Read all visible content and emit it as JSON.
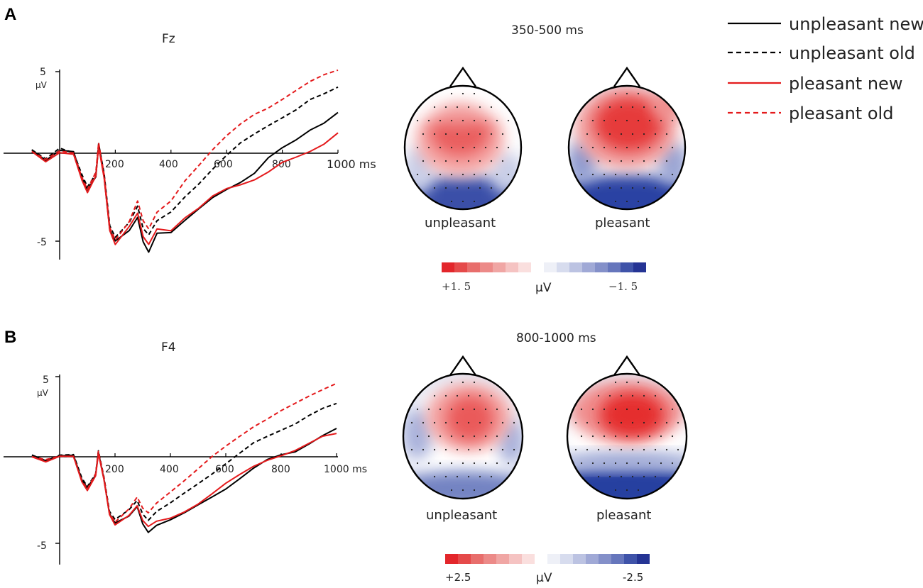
{
  "legend": [
    {
      "label": "unpleasant new",
      "color": "#000000",
      "dash": "solid"
    },
    {
      "label": "unpleasant old",
      "color": "#000000",
      "dash": "dashed"
    },
    {
      "label": "pleasant new",
      "color": "#e41a1c",
      "dash": "solid"
    },
    {
      "label": "pleasant old",
      "color": "#e41a1c",
      "dash": "dashed"
    }
  ],
  "colors": {
    "neg_dark": "#253494",
    "pos_dark": "#e3262b",
    "mid": "#ffffff"
  },
  "chart_data": [
    {
      "panel": "A",
      "type": "line",
      "title": "Fz",
      "xlabel": "ms",
      "ylabel": "μV",
      "xlim": [
        -100,
        1000
      ],
      "ylim": [
        -6,
        5
      ],
      "xticks": [
        "200",
        "400",
        "600",
        "800",
        "1000 ms"
      ],
      "yticks": [
        "5",
        "-5"
      ],
      "series": [
        {
          "name": "unpleasant new",
          "x": [
            -100,
            -50,
            0,
            50,
            80,
            100,
            130,
            140,
            160,
            180,
            200,
            250,
            280,
            300,
            320,
            350,
            400,
            450,
            500,
            550,
            600,
            650,
            700,
            750,
            800,
            850,
            900,
            950,
            1000
          ],
          "y": [
            0.2,
            -0.4,
            0.2,
            0.1,
            -1.5,
            -2.2,
            -1.4,
            0.5,
            -1.4,
            -4.5,
            -5.2,
            -4.6,
            -3.8,
            -5.2,
            -5.8,
            -4.7,
            -4.7,
            -4.0,
            -3.3,
            -2.6,
            -2.1,
            -1.7,
            -1.2,
            -0.3,
            0.3,
            0.8,
            1.4,
            1.8,
            2.4
          ]
        },
        {
          "name": "unpleasant old",
          "x": [
            -100,
            -50,
            0,
            50,
            80,
            100,
            130,
            140,
            160,
            180,
            200,
            250,
            280,
            300,
            320,
            350,
            400,
            450,
            500,
            550,
            600,
            650,
            700,
            750,
            800,
            850,
            900,
            950,
            1000
          ],
          "y": [
            0.2,
            -0.3,
            0.3,
            0.0,
            -1.3,
            -2.0,
            -1.2,
            0.6,
            -1.2,
            -4.3,
            -5.0,
            -4.1,
            -3.1,
            -4.4,
            -4.8,
            -4.0,
            -3.5,
            -2.6,
            -1.8,
            -0.9,
            -0.1,
            0.6,
            1.1,
            1.6,
            2.1,
            2.6,
            3.2,
            3.5,
            3.9
          ]
        },
        {
          "name": "pleasant new",
          "x": [
            -100,
            -50,
            0,
            50,
            80,
            100,
            130,
            140,
            160,
            180,
            200,
            250,
            280,
            300,
            320,
            350,
            400,
            450,
            500,
            550,
            600,
            650,
            700,
            750,
            800,
            850,
            900,
            950,
            1000
          ],
          "y": [
            0.1,
            -0.5,
            0.0,
            -0.1,
            -1.6,
            -2.3,
            -1.3,
            0.4,
            -1.5,
            -4.6,
            -5.4,
            -4.3,
            -3.5,
            -4.9,
            -5.4,
            -4.5,
            -4.6,
            -3.8,
            -3.2,
            -2.5,
            -2.1,
            -1.9,
            -1.6,
            -1.1,
            -0.5,
            -0.2,
            0.1,
            0.5,
            1.2
          ]
        },
        {
          "name": "pleasant old",
          "x": [
            -100,
            -50,
            0,
            50,
            80,
            100,
            130,
            140,
            160,
            180,
            200,
            250,
            280,
            300,
            320,
            350,
            400,
            450,
            500,
            550,
            600,
            650,
            700,
            750,
            800,
            850,
            900,
            950,
            1000
          ],
          "y": [
            0.1,
            -0.4,
            0.1,
            0.0,
            -1.4,
            -2.1,
            -1.1,
            0.6,
            -1.3,
            -4.4,
            -5.1,
            -4.0,
            -2.8,
            -4.0,
            -4.5,
            -3.5,
            -2.8,
            -1.6,
            -0.7,
            0.2,
            1.0,
            1.7,
            2.3,
            2.7,
            3.2,
            3.7,
            4.2,
            4.6,
            4.9
          ]
        }
      ],
      "topomap": {
        "window": "350-500 ms",
        "conditions": [
          "unpleasant",
          "pleasant"
        ],
        "colorbar": {
          "max_label": "+1. 5",
          "min_label": "−1. 5",
          "unit": "μV",
          "steps": 16
        }
      }
    },
    {
      "panel": "B",
      "type": "line",
      "title": "F4",
      "xlabel": "ms",
      "ylabel": "μV",
      "xlim": [
        -100,
        1000
      ],
      "ylim": [
        -6,
        5
      ],
      "xticks": [
        "200",
        "400",
        "600",
        "800",
        "1000 ms"
      ],
      "yticks": [
        "5",
        "-5"
      ],
      "series": [
        {
          "name": "unpleasant new",
          "x": [
            -100,
            -50,
            0,
            50,
            80,
            100,
            130,
            140,
            160,
            180,
            200,
            250,
            280,
            300,
            320,
            350,
            400,
            450,
            500,
            550,
            600,
            650,
            700,
            750,
            800,
            850,
            900,
            950,
            1000
          ],
          "y": [
            0.1,
            -0.2,
            0.1,
            0.1,
            -1.4,
            -1.9,
            -1.1,
            0.3,
            -1.3,
            -3.4,
            -4.0,
            -3.6,
            -3.0,
            -4.0,
            -4.5,
            -4.1,
            -3.8,
            -3.4,
            -2.9,
            -2.4,
            -1.9,
            -1.3,
            -0.7,
            -0.2,
            0.1,
            0.3,
            0.8,
            1.3,
            1.7
          ]
        },
        {
          "name": "unpleasant old",
          "x": [
            -100,
            -50,
            0,
            50,
            80,
            100,
            130,
            140,
            160,
            180,
            200,
            250,
            280,
            300,
            320,
            350,
            400,
            450,
            500,
            550,
            600,
            650,
            700,
            750,
            800,
            850,
            900,
            950,
            1000
          ],
          "y": [
            0.1,
            -0.2,
            0.1,
            0.1,
            -1.3,
            -1.8,
            -1.0,
            0.4,
            -1.2,
            -3.3,
            -3.8,
            -3.2,
            -2.6,
            -3.4,
            -3.8,
            -3.3,
            -2.8,
            -2.2,
            -1.6,
            -1.0,
            -0.4,
            0.2,
            0.8,
            1.2,
            1.6,
            2.0,
            2.5,
            2.9,
            3.2
          ]
        },
        {
          "name": "pleasant new",
          "x": [
            -100,
            -50,
            0,
            50,
            80,
            100,
            130,
            140,
            160,
            180,
            200,
            250,
            280,
            300,
            320,
            350,
            400,
            450,
            500,
            550,
            600,
            650,
            700,
            750,
            800,
            850,
            900,
            950,
            1000
          ],
          "y": [
            0.0,
            -0.3,
            0.0,
            0.0,
            -1.5,
            -2.0,
            -1.1,
            0.2,
            -1.4,
            -3.5,
            -4.1,
            -3.5,
            -2.9,
            -3.8,
            -4.2,
            -3.9,
            -3.7,
            -3.3,
            -2.8,
            -2.2,
            -1.6,
            -1.1,
            -0.6,
            -0.2,
            0.1,
            0.4,
            0.8,
            1.2,
            1.4
          ]
        },
        {
          "name": "pleasant old",
          "x": [
            -100,
            -50,
            0,
            50,
            80,
            100,
            130,
            140,
            160,
            180,
            200,
            250,
            280,
            300,
            320,
            350,
            400,
            450,
            500,
            550,
            600,
            650,
            700,
            750,
            800,
            850,
            900,
            950,
            1000
          ],
          "y": [
            0.0,
            -0.2,
            0.0,
            0.0,
            -1.4,
            -1.9,
            -1.0,
            0.3,
            -1.3,
            -3.4,
            -3.9,
            -3.1,
            -2.4,
            -3.1,
            -3.4,
            -2.8,
            -2.1,
            -1.4,
            -0.7,
            0.0,
            0.6,
            1.2,
            1.8,
            2.3,
            2.8,
            3.2,
            3.6,
            4.0,
            4.4
          ]
        }
      ],
      "topomap": {
        "window": "800-1000 ms",
        "conditions": [
          "unpleasant",
          "pleasant"
        ],
        "colorbar": {
          "max_label": "+2.5",
          "min_label": "-2.5",
          "unit": "μV",
          "steps": 16
        }
      }
    }
  ]
}
